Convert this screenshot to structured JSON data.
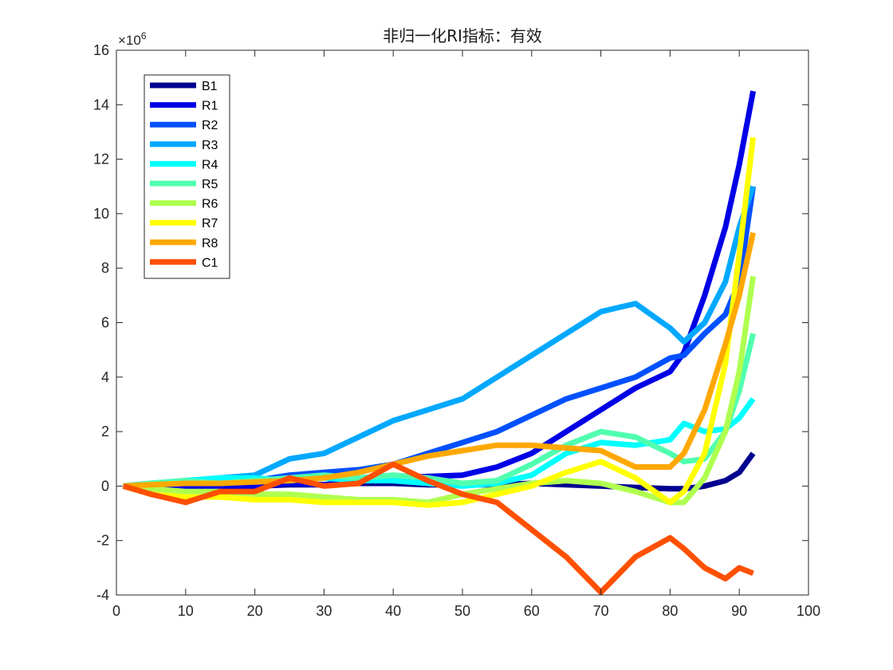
{
  "chart_data": {
    "type": "line",
    "title": "非归一化RI指标：有效",
    "xlabel": "",
    "ylabel": "",
    "xlim": [
      0,
      100
    ],
    "ylim": [
      -4,
      16
    ],
    "y_exponent": "6",
    "x_ticks": [
      "0",
      "10",
      "20",
      "30",
      "40",
      "50",
      "60",
      "70",
      "80",
      "90",
      "100"
    ],
    "y_ticks": [
      "-4",
      "-2",
      "0",
      "2",
      "4",
      "6",
      "8",
      "10",
      "12",
      "14",
      "16"
    ],
    "legend_position": "top-left",
    "grid": false,
    "x": [
      1,
      5,
      10,
      15,
      20,
      25,
      30,
      35,
      40,
      45,
      50,
      55,
      60,
      65,
      70,
      75,
      80,
      82,
      85,
      88,
      90,
      92
    ],
    "series": [
      {
        "name": "B1",
        "color": "#00008f",
        "values": [
          0.0,
          -0.05,
          -0.1,
          -0.05,
          0.0,
          0.05,
          0.05,
          0.1,
          0.1,
          0.05,
          0.05,
          0.05,
          0.1,
          0.05,
          0.0,
          -0.05,
          -0.1,
          -0.1,
          0.0,
          0.2,
          0.5,
          1.2
        ]
      },
      {
        "name": "R1",
        "color": "#0000e6",
        "values": [
          0.0,
          -0.1,
          -0.1,
          0.0,
          0.0,
          0.1,
          0.05,
          0.2,
          0.3,
          0.35,
          0.4,
          0.7,
          1.2,
          2.0,
          2.8,
          3.6,
          4.2,
          4.9,
          7.0,
          9.5,
          11.8,
          14.5
        ]
      },
      {
        "name": "R2",
        "color": "#0050ff",
        "values": [
          0.0,
          0.1,
          0.1,
          0.2,
          0.2,
          0.4,
          0.5,
          0.6,
          0.8,
          1.2,
          1.6,
          2.0,
          2.6,
          3.2,
          3.6,
          4.0,
          4.7,
          4.8,
          5.6,
          6.3,
          7.5,
          11.0
        ]
      },
      {
        "name": "R3",
        "color": "#00a8ff",
        "values": [
          0.0,
          0.1,
          0.2,
          0.3,
          0.4,
          1.0,
          1.2,
          1.8,
          2.4,
          2.8,
          3.2,
          4.0,
          4.8,
          5.6,
          6.4,
          6.7,
          5.8,
          5.3,
          6.0,
          7.5,
          9.5,
          11.0
        ]
      },
      {
        "name": "R4",
        "color": "#00ffff",
        "values": [
          0.0,
          0.1,
          0.2,
          0.3,
          0.3,
          0.2,
          0.3,
          0.2,
          0.2,
          0.1,
          0.0,
          0.1,
          0.4,
          1.2,
          1.6,
          1.5,
          1.7,
          2.3,
          2.0,
          2.1,
          2.5,
          3.2
        ]
      },
      {
        "name": "R5",
        "color": "#50ffaf",
        "values": [
          0.0,
          0.1,
          0.2,
          0.1,
          0.2,
          0.3,
          0.4,
          0.3,
          0.4,
          0.3,
          0.1,
          0.2,
          0.8,
          1.5,
          2.0,
          1.8,
          1.2,
          0.9,
          1.0,
          2.0,
          3.5,
          5.6
        ]
      },
      {
        "name": "R6",
        "color": "#afff50",
        "values": [
          0.0,
          -0.1,
          -0.2,
          -0.2,
          -0.3,
          -0.3,
          -0.4,
          -0.5,
          -0.5,
          -0.6,
          -0.3,
          -0.1,
          0.1,
          0.2,
          0.1,
          -0.2,
          -0.6,
          -0.6,
          0.3,
          2.0,
          4.2,
          7.7
        ]
      },
      {
        "name": "R7",
        "color": "#ffff00",
        "values": [
          0.0,
          -0.3,
          -0.4,
          -0.4,
          -0.5,
          -0.5,
          -0.6,
          -0.6,
          -0.6,
          -0.7,
          -0.6,
          -0.3,
          0.0,
          0.5,
          0.9,
          0.3,
          -0.6,
          -0.2,
          1.2,
          4.5,
          8.5,
          12.8
        ]
      },
      {
        "name": "R8",
        "color": "#ffa800",
        "values": [
          0.0,
          0.05,
          0.1,
          0.1,
          0.15,
          0.2,
          0.3,
          0.5,
          0.8,
          1.1,
          1.3,
          1.5,
          1.5,
          1.4,
          1.3,
          0.7,
          0.7,
          1.2,
          2.8,
          5.2,
          7.0,
          9.3
        ]
      },
      {
        "name": "C1",
        "color": "#ff5000",
        "values": [
          0.0,
          -0.3,
          -0.6,
          -0.2,
          -0.2,
          0.3,
          0.0,
          0.1,
          0.8,
          0.2,
          -0.3,
          -0.6,
          -1.6,
          -2.6,
          -3.9,
          -2.6,
          -1.9,
          -2.3,
          -3.0,
          -3.4,
          -3.0,
          -3.2
        ]
      }
    ]
  }
}
